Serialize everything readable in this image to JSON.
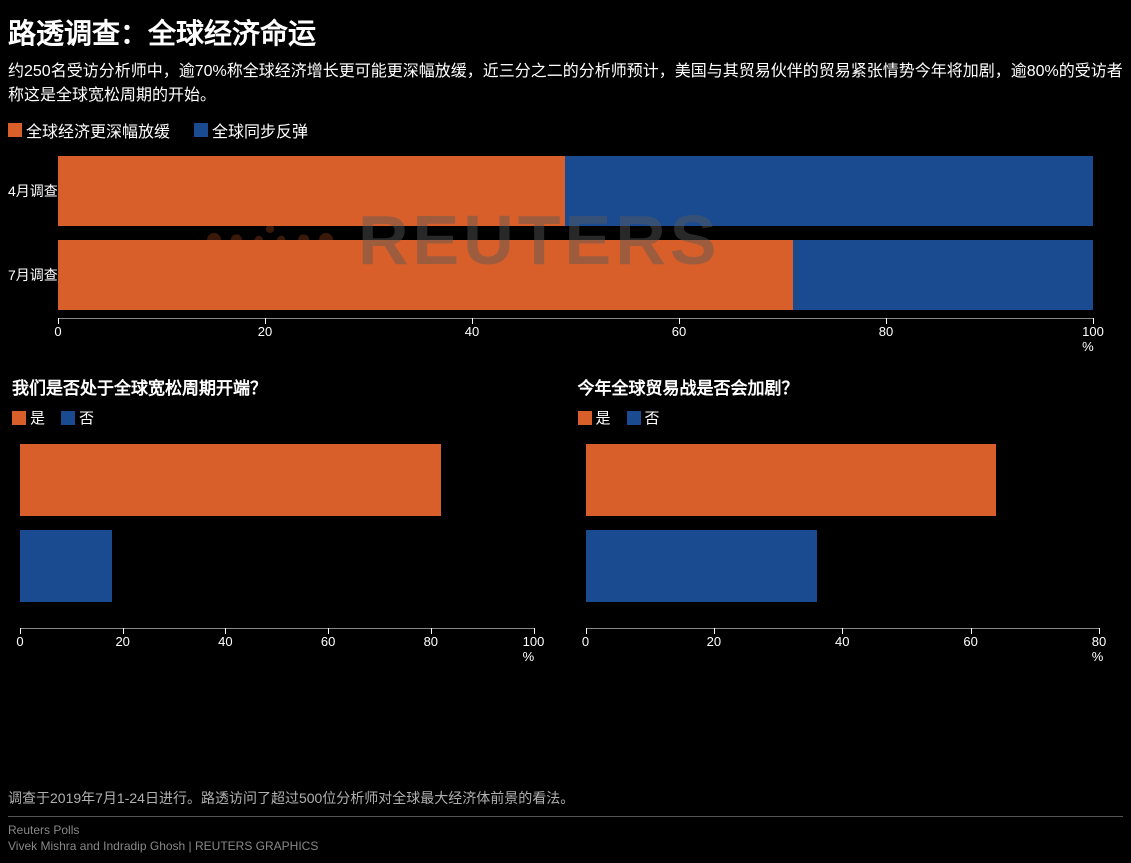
{
  "title": "路透调查：全球经济命运",
  "subtitle": "约250名受访分析师中，逾70%称全球经济增长更可能更深幅放缓，近三分之二的分析师预计，美国与其贸易伙伴的贸易紧张情势今年将加剧，逾80%的受访者称这是全球宽松周期的开始。",
  "colors": {
    "orange": "#d85f2a",
    "blue": "#1a4a8f",
    "background": "#000000",
    "text": "#ffffff",
    "muted": "#888888"
  },
  "top_chart": {
    "type": "stacked-horizontal-bar",
    "legend": [
      {
        "label": "全球经济更深幅放缓",
        "color": "#d85f2a"
      },
      {
        "label": "全球同步反弹",
        "color": "#1a4a8f"
      }
    ],
    "rows": [
      {
        "label": "4月调查",
        "orange_pct": 49,
        "blue_pct": 51
      },
      {
        "label": "7月调查",
        "orange_pct": 71,
        "blue_pct": 29
      }
    ],
    "xlim": [
      0,
      100
    ],
    "xtick_step": 20,
    "xticks": [
      0,
      20,
      40,
      60,
      80,
      100
    ],
    "unit": "%"
  },
  "bottom_left": {
    "type": "horizontal-bar",
    "title": "我们是否处于全球宽松周期开端？",
    "legend": [
      {
        "label": "是",
        "color": "#d85f2a"
      },
      {
        "label": "否",
        "color": "#1a4a8f"
      }
    ],
    "bars": [
      {
        "label": "是",
        "value": 82,
        "color": "#d85f2a"
      },
      {
        "label": "否",
        "value": 18,
        "color": "#1a4a8f"
      }
    ],
    "xlim": [
      0,
      100
    ],
    "xtick_step": 20,
    "xticks": [
      0,
      20,
      40,
      60,
      80,
      100
    ],
    "unit": "%"
  },
  "bottom_right": {
    "type": "horizontal-bar",
    "title": "今年全球贸易战是否会加剧？",
    "legend": [
      {
        "label": "是",
        "color": "#d85f2a"
      },
      {
        "label": "否",
        "color": "#1a4a8f"
      }
    ],
    "bars": [
      {
        "label": "是",
        "value": 64,
        "color": "#d85f2a"
      },
      {
        "label": "否",
        "value": 36,
        "color": "#1a4a8f"
      }
    ],
    "xlim": [
      0,
      80
    ],
    "xtick_step": 20,
    "xticks": [
      0,
      20,
      40,
      60,
      80
    ],
    "unit": "%"
  },
  "watermark": "REUTERS",
  "footer": {
    "note": "调查于2019年7月1-24日进行。路透访问了超过500位分析师对全球最大经济体前景的看法。",
    "source": "Reuters Polls",
    "credit": "Vivek Mishra and Indradip Ghosh    | REUTERS GRAPHICS"
  }
}
